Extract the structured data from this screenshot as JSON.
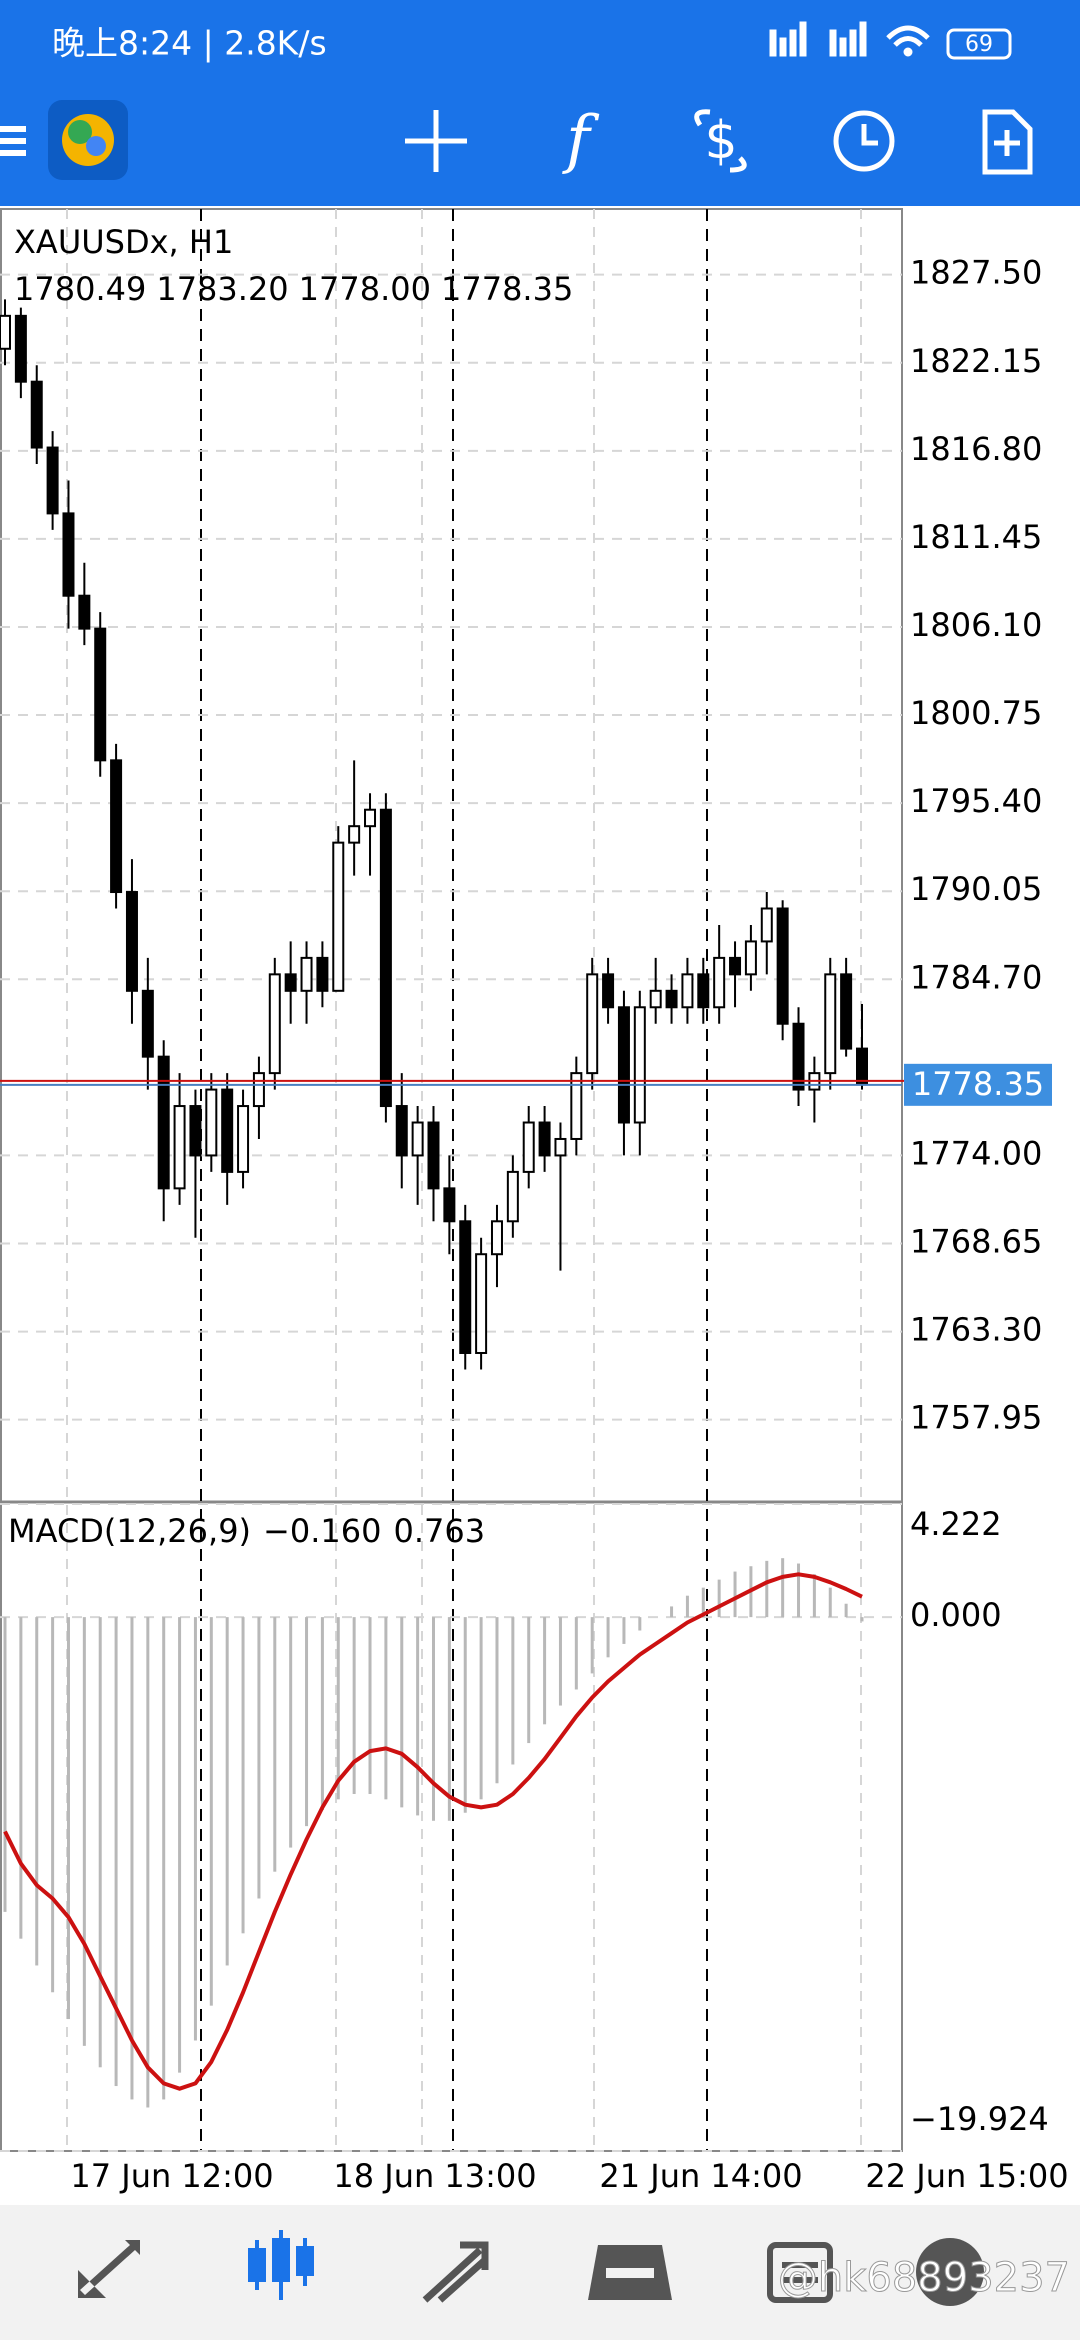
{
  "status_bar": {
    "time": "晚上8:24 | 2.8K/s",
    "battery": "69"
  },
  "chart_data": {
    "type": "candlestick",
    "symbol": "XAUUSDx, H1",
    "ohlc_labels": [
      "1780.49",
      "1783.20",
      "1778.00",
      "1778.35"
    ],
    "bull_color": "#ffffff",
    "bear_color": "#000000",
    "ohlc": [
      [
        1823,
        1826,
        1822,
        1825
      ],
      [
        1825,
        1825.5,
        1820,
        1821
      ],
      [
        1821,
        1822,
        1816,
        1817
      ],
      [
        1817,
        1818,
        1812,
        1813
      ],
      [
        1813,
        1815,
        1806,
        1808
      ],
      [
        1808,
        1810,
        1805,
        1806
      ],
      [
        1806,
        1807,
        1797,
        1798
      ],
      [
        1798,
        1799,
        1789,
        1790
      ],
      [
        1790,
        1792,
        1782,
        1784
      ],
      [
        1784,
        1786,
        1778,
        1780
      ],
      [
        1780,
        1781,
        1770,
        1772
      ],
      [
        1772,
        1779,
        1771,
        1777
      ],
      [
        1777,
        1778,
        1769,
        1774
      ],
      [
        1774,
        1779,
        1773,
        1778
      ],
      [
        1778,
        1779,
        1771,
        1773
      ],
      [
        1773,
        1778,
        1772,
        1777
      ],
      [
        1777,
        1780,
        1775,
        1779
      ],
      [
        1779,
        1786,
        1778,
        1785
      ],
      [
        1785,
        1787,
        1782,
        1784
      ],
      [
        1784,
        1787,
        1782,
        1786
      ],
      [
        1786,
        1787,
        1783,
        1784
      ],
      [
        1784,
        1794,
        1784,
        1793
      ],
      [
        1793,
        1798,
        1791,
        1794
      ],
      [
        1794,
        1796,
        1791,
        1795
      ],
      [
        1795,
        1796,
        1776,
        1777
      ],
      [
        1777,
        1779,
        1772,
        1774
      ],
      [
        1774,
        1777,
        1771,
        1776
      ],
      [
        1776,
        1777,
        1770,
        1772
      ],
      [
        1772,
        1774,
        1768,
        1770
      ],
      [
        1770,
        1771,
        1761,
        1762
      ],
      [
        1762,
        1769,
        1761,
        1768
      ],
      [
        1768,
        1771,
        1766,
        1770
      ],
      [
        1770,
        1774,
        1769,
        1773
      ],
      [
        1773,
        1777,
        1772,
        1776
      ],
      [
        1776,
        1777,
        1773,
        1774
      ],
      [
        1774,
        1776,
        1767,
        1775
      ],
      [
        1775,
        1780,
        1774,
        1779
      ],
      [
        1779,
        1786,
        1778,
        1785
      ],
      [
        1785,
        1786,
        1782,
        1783
      ],
      [
        1783,
        1784,
        1774,
        1776
      ],
      [
        1776,
        1784,
        1774,
        1783
      ],
      [
        1783,
        1786,
        1782,
        1784
      ],
      [
        1784,
        1785,
        1782,
        1783
      ],
      [
        1783,
        1786,
        1782,
        1785
      ],
      [
        1785,
        1786,
        1782,
        1783
      ],
      [
        1783,
        1788,
        1782,
        1786
      ],
      [
        1786,
        1787,
        1783,
        1785
      ],
      [
        1785,
        1788,
        1784,
        1787
      ],
      [
        1787,
        1790,
        1785,
        1789
      ],
      [
        1789,
        1789.5,
        1781,
        1782
      ],
      [
        1782,
        1783,
        1777,
        1778
      ],
      [
        1778,
        1780,
        1776,
        1779
      ],
      [
        1779,
        1786,
        1778,
        1785
      ],
      [
        1785,
        1786,
        1780,
        1780.49
      ],
      [
        1780.49,
        1783.2,
        1778,
        1778.35
      ]
    ],
    "ylim": [
      1753.07,
      1831.49
    ],
    "yticks": [
      {
        "value": 1827.5,
        "label": "1827.50"
      },
      1822.15,
      {
        "value": 1816.8,
        "label": "1816.80"
      },
      1811.45,
      {
        "value": 1806.1,
        "label": "1806.10"
      },
      1800.75,
      {
        "value": 1795.4,
        "label": "1795.40"
      },
      1790.05,
      {
        "value": 1784.7,
        "label": "1784.70"
      },
      {
        "value": 1774,
        "label": "1774.00"
      },
      1768.65,
      {
        "value": 1763.3,
        "label": "1763.30"
      },
      1757.95
    ],
    "x_labels": [
      "17 Jun 12:00",
      "18 Jun 13:00",
      "21 Jun 14:00",
      "22 Jun 15:00"
    ],
    "grid": true,
    "macd": {
      "type": "macd",
      "title": "MACD(12,26,9)",
      "value_labels": [
        "−0.160",
        "0.763"
      ],
      "histogram_color": "#b8b8b8",
      "signal_color": "#cc1111",
      "histogram": [
        -11,
        -12,
        -13,
        -14,
        -15,
        -16,
        -16.8,
        -17.5,
        -18,
        -18.3,
        -18,
        -17,
        -15.8,
        -14.5,
        -13,
        -11.8,
        -10.5,
        -9.5,
        -8.6,
        -7.8,
        -7.2,
        -6.8,
        -6.6,
        -6.6,
        -6.8,
        -7.1,
        -7.4,
        -7.6,
        -7.6,
        -7.3,
        -6.8,
        -6.2,
        -5.5,
        -4.7,
        -4,
        -3.3,
        -2.7,
        -2.1,
        -1.5,
        -1,
        -0.5,
        0,
        0.4,
        0.8,
        1.1,
        1.4,
        1.7,
        1.9,
        2.1,
        2.2,
        2,
        1.6,
        1.1,
        0.5,
        -0.16
      ],
      "signal": [
        -8,
        -9.2,
        -10,
        -10.5,
        -11.2,
        -12.2,
        -13.4,
        -14.6,
        -15.8,
        -16.8,
        -17.4,
        -17.6,
        -17.4,
        -16.6,
        -15.4,
        -14,
        -12.5,
        -11,
        -9.6,
        -8.3,
        -7.1,
        -6.1,
        -5.4,
        -5,
        -4.9,
        -5.1,
        -5.6,
        -6.2,
        -6.7,
        -7,
        -7.1,
        -7,
        -6.6,
        -6,
        -5.3,
        -4.5,
        -3.7,
        -3,
        -2.4,
        -1.9,
        -1.4,
        -1,
        -0.6,
        -0.2,
        0.1,
        0.4,
        0.7,
        1,
        1.3,
        1.5,
        1.6,
        1.5,
        1.3,
        1.05,
        0.763
      ],
      "ylim": [
        -19.924,
        4.222
      ],
      "yticks": [
        4.222,
        {
          "value": 0,
          "label": "0.000"
        },
        {
          "value": -19.924,
          "label": "−19.924"
        }
      ]
    }
  },
  "watermark": "@hk68893237"
}
